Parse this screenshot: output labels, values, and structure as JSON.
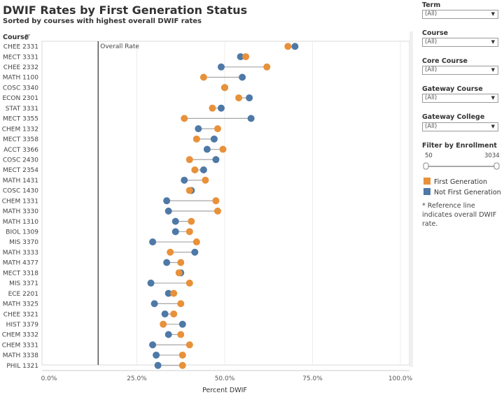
{
  "title": "DWIF Rates by First Generation Status",
  "subtitle": "Sorted by courses with highest overall DWIF rates",
  "chart_data": {
    "type": "dumbbell",
    "title": "DWIF Rates by First Generation Status",
    "subtitle": "Sorted by courses with highest overall DWIF rates",
    "ylabel": "Course",
    "xlabel": "Percent DWIF",
    "xlim": [
      0,
      100
    ],
    "xticks": [
      0,
      25,
      50,
      75,
      100
    ],
    "xtick_labels": [
      "0.0%",
      "25.0%",
      "50.0%",
      "75.0%",
      "100.0%"
    ],
    "reference_line": {
      "label": "Overall Rate",
      "value": 14
    },
    "categories": [
      "CHEE 2331",
      "MECT 3331",
      "CHEE 2332",
      "MATH 1100",
      "COSC 3340",
      "ECON 2301",
      "STAT 3331",
      "MECT 3355",
      "CHEM 1332",
      "MECT 3358",
      "ACCT 3366",
      "COSC 2430",
      "MECT 2354",
      "MATH 1431",
      "COSC 1430",
      "CHEM 1331",
      "MATH 3330",
      "MATH 1310",
      "BIOL 1309",
      "MIS 3370",
      "MATH 3333",
      "MATH 4377",
      "MECT 3318",
      "MIS 3371",
      "ECE 2201",
      "MATH 3325",
      "CHEE 3321",
      "HIST 3379",
      "CHEM 3332",
      "CHEM 3331",
      "MATH 3338",
      "PHIL 1321"
    ],
    "series": [
      {
        "name": "First Generation",
        "color": "#E8913A",
        "values": [
          68,
          56,
          62,
          44,
          50,
          54,
          46.5,
          38.5,
          48,
          42,
          49.5,
          40,
          41.5,
          44.5,
          40,
          47.5,
          48,
          40.5,
          40,
          42,
          34.5,
          37.5,
          37,
          40,
          35.5,
          37.5,
          35.5,
          32.5,
          37.5,
          40,
          38,
          38
        ]
      },
      {
        "name": "Not First Generation",
        "color": "#4E79A7",
        "values": [
          70,
          54.5,
          49,
          55,
          50,
          57,
          49,
          57.5,
          42.5,
          47,
          45,
          47.5,
          44,
          38.5,
          40.5,
          33.5,
          34,
          36,
          36,
          29.5,
          41.5,
          33.5,
          37.5,
          29,
          34,
          30,
          33,
          38,
          34,
          29.5,
          30.5,
          31
        ]
      }
    ]
  },
  "filters": [
    {
      "label": "Term",
      "value": "(All)"
    },
    {
      "label": "Course",
      "value": "(All)"
    },
    {
      "label": "Core Course",
      "value": "(All)"
    },
    {
      "label": "Gateway Course",
      "value": "(All)"
    },
    {
      "label": "Gateway College",
      "value": "(All)"
    }
  ],
  "enrollment": {
    "label": "Filter by Enrollment",
    "min": "50",
    "max": "3034"
  },
  "legend": [
    {
      "label": "First Generation",
      "color": "#E8913A"
    },
    {
      "label": "Not First Generation",
      "color": "#4E79A7"
    }
  ],
  "note": "* Reference line indicates overall DWIF rate.",
  "icons": {
    "sort": "sort-icon",
    "dropdown": "chevron-down-icon"
  }
}
